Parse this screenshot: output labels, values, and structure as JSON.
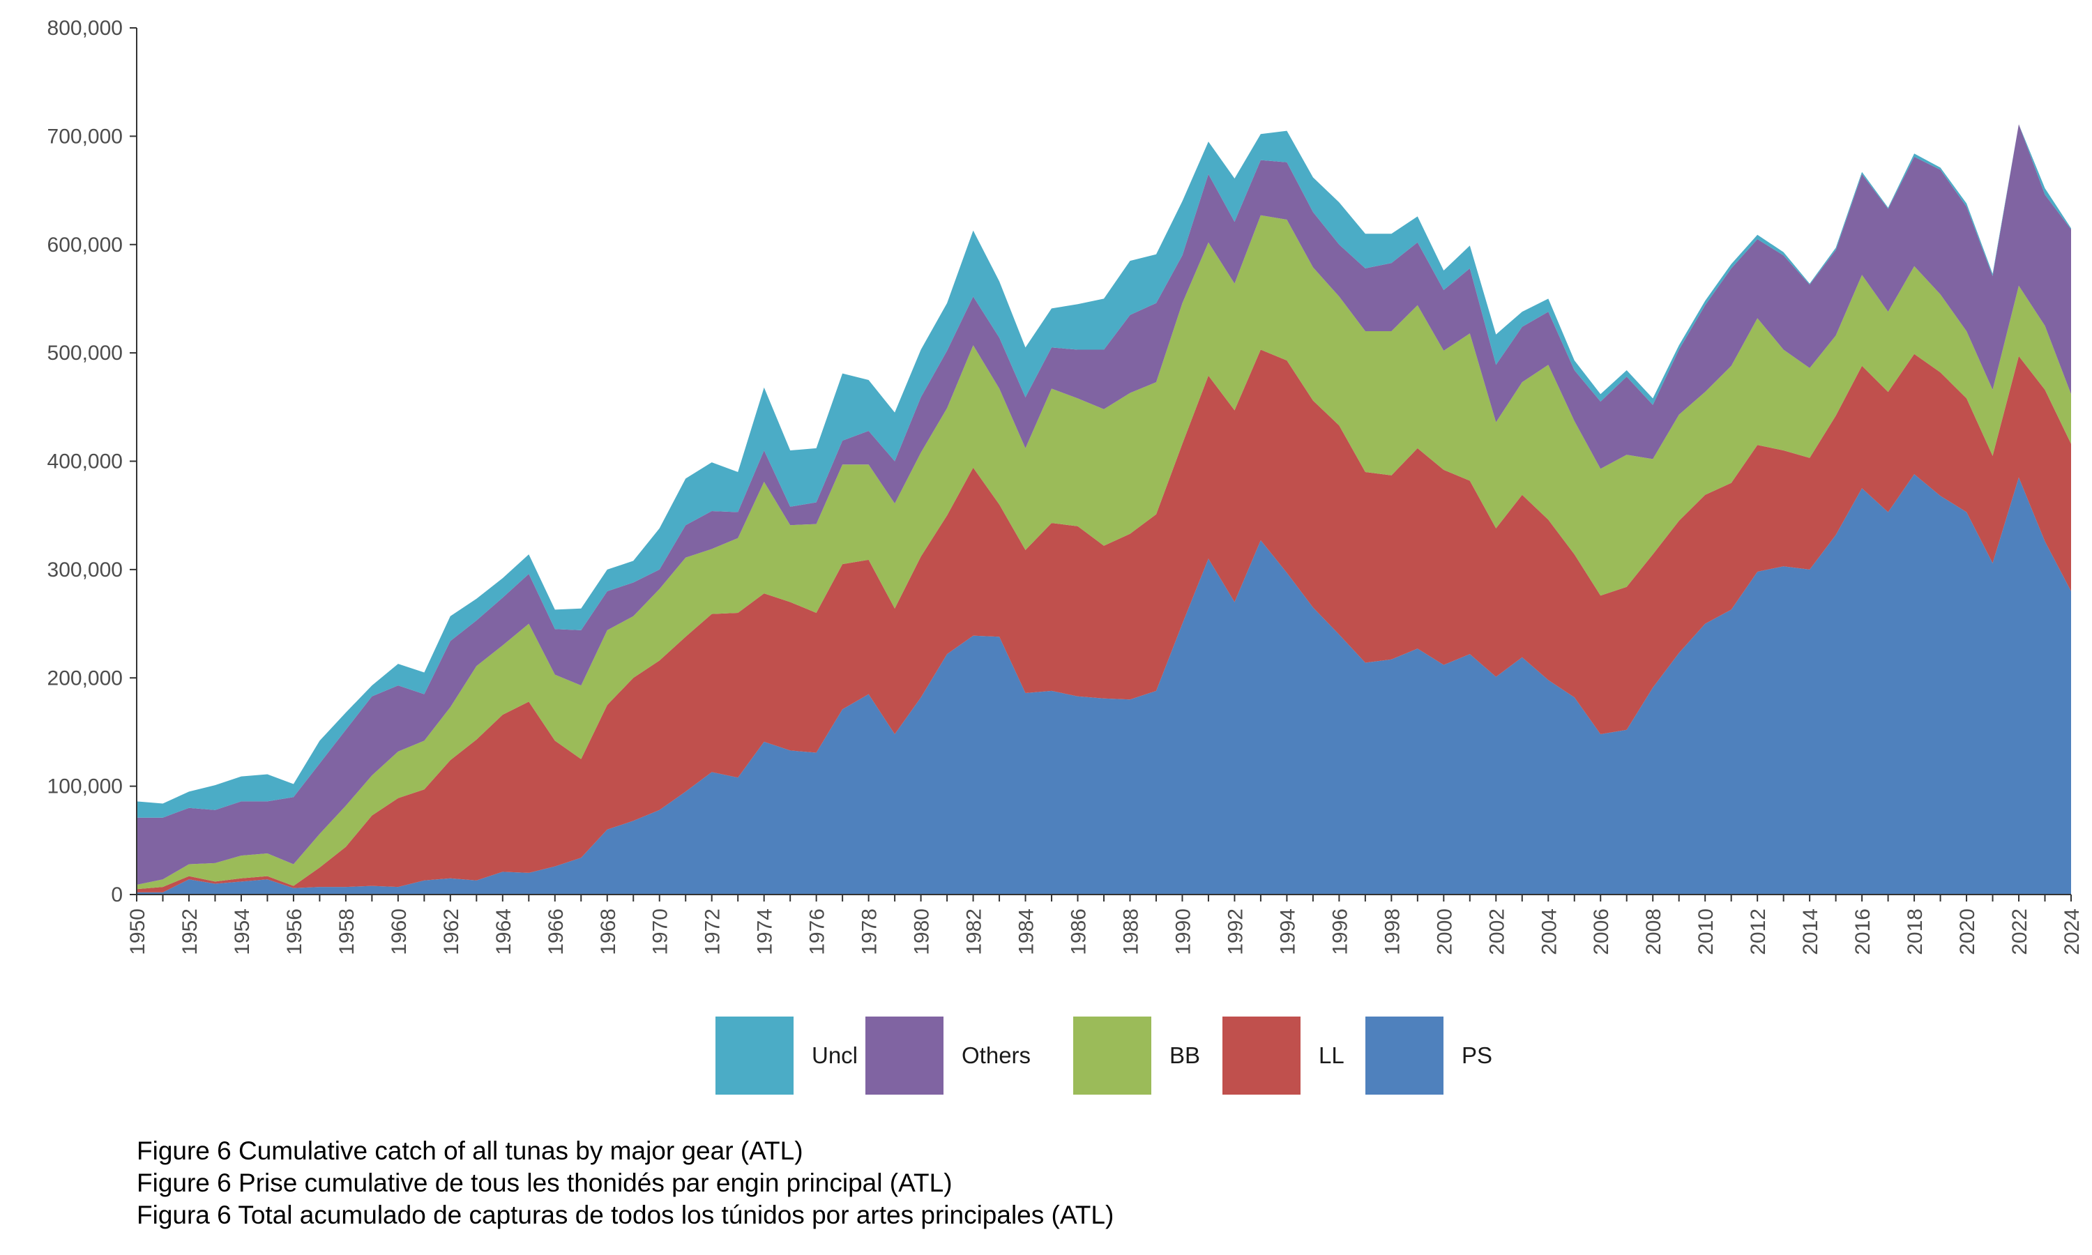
{
  "chart_data": {
    "type": "area",
    "stacked": true,
    "x": [
      1950,
      1951,
      1952,
      1953,
      1954,
      1955,
      1956,
      1957,
      1958,
      1959,
      1960,
      1961,
      1962,
      1963,
      1964,
      1965,
      1966,
      1967,
      1968,
      1969,
      1970,
      1971,
      1972,
      1973,
      1974,
      1975,
      1976,
      1977,
      1978,
      1979,
      1980,
      1981,
      1982,
      1983,
      1984,
      1985,
      1986,
      1987,
      1988,
      1989,
      1990,
      1991,
      1992,
      1993,
      1994,
      1995,
      1996,
      1997,
      1998,
      1999,
      2000,
      2001,
      2002,
      2003,
      2004,
      2005,
      2006,
      2007,
      2008,
      2009,
      2010,
      2011,
      2012,
      2013,
      2014,
      2015,
      2016,
      2017,
      2018,
      2019,
      2020,
      2021,
      2022,
      2023,
      2024
    ],
    "x_tick_labels": [
      "1950",
      "1952",
      "1954",
      "1956",
      "1958",
      "1960",
      "1962",
      "1964",
      "1966",
      "1968",
      "1970",
      "1972",
      "1974",
      "1976",
      "1978",
      "1980",
      "1982",
      "1984",
      "1986",
      "1988",
      "1990",
      "1992",
      "1994",
      "1996",
      "1998",
      "2000",
      "2002",
      "2004",
      "2006",
      "2008",
      "2010",
      "2012",
      "2014",
      "2016",
      "2018",
      "2020",
      "2022",
      "2024"
    ],
    "ylim": [
      0,
      800000
    ],
    "y_ticks": [
      0,
      100000,
      200000,
      300000,
      400000,
      500000,
      600000,
      700000,
      800000
    ],
    "y_tick_labels": [
      "0",
      "100,000",
      "200,000",
      "300,000",
      "400,000",
      "500,000",
      "600,000",
      "700,000",
      "800,000"
    ],
    "grid": false,
    "legend_position": "bottom",
    "series": [
      {
        "name": "PS",
        "color": "#4f81bd",
        "values": [
          2000,
          2000,
          14000,
          10000,
          12000,
          14000,
          6000,
          7000,
          7000,
          8000,
          7000,
          13000,
          15000,
          13000,
          21000,
          20000,
          26000,
          34000,
          60000,
          68000,
          78000,
          95000,
          113000,
          108000,
          141000,
          133000,
          131000,
          171000,
          185000,
          148000,
          182000,
          222000,
          239000,
          238000,
          186000,
          188000,
          183000,
          181000,
          180000,
          188000,
          250000,
          310000,
          270000,
          327000,
          297000,
          265000,
          240000,
          214000,
          217000,
          227000,
          212000,
          222000,
          201000,
          219000,
          198000,
          182000,
          148000,
          152000,
          191000,
          223000,
          250000,
          263000,
          298000,
          303000,
          300000,
          332000,
          375000,
          353000,
          388000,
          368000,
          353000,
          306000,
          385000,
          326000,
          280000
        ]
      },
      {
        "name": "LL",
        "color": "#c0504d",
        "values": [
          3000,
          5000,
          3000,
          2000,
          3000,
          3000,
          2000,
          18000,
          37000,
          65000,
          82000,
          84000,
          109000,
          130000,
          145000,
          158000,
          116000,
          91000,
          115000,
          132000,
          138000,
          143000,
          146000,
          152000,
          137000,
          137000,
          129000,
          134000,
          124000,
          116000,
          130000,
          128000,
          155000,
          122000,
          132000,
          155000,
          157000,
          141000,
          153000,
          163000,
          166000,
          169000,
          177000,
          176000,
          196000,
          191000,
          193000,
          176000,
          170000,
          185000,
          180000,
          160000,
          137000,
          150000,
          148000,
          132000,
          128000,
          132000,
          123000,
          122000,
          119000,
          117000,
          117000,
          107000,
          103000,
          110000,
          113000,
          111000,
          111000,
          114000,
          105000,
          99000,
          112000,
          140000,
          136000
        ]
      },
      {
        "name": "BB",
        "color": "#9bbb59",
        "values": [
          4000,
          7000,
          11000,
          17000,
          21000,
          21000,
          20000,
          31000,
          38000,
          37000,
          43000,
          45000,
          49000,
          68000,
          64000,
          72000,
          61000,
          68000,
          69000,
          57000,
          66000,
          73000,
          60000,
          69000,
          103000,
          71000,
          82000,
          92000,
          88000,
          97000,
          96000,
          99000,
          113000,
          107000,
          94000,
          124000,
          118000,
          126000,
          130000,
          122000,
          130000,
          123000,
          117000,
          124000,
          130000,
          123000,
          119000,
          130000,
          133000,
          132000,
          110000,
          136000,
          98000,
          104000,
          143000,
          123000,
          117000,
          122000,
          88000,
          98000,
          95000,
          108000,
          117000,
          93000,
          83000,
          74000,
          84000,
          74000,
          81000,
          72000,
          62000,
          61000,
          65000,
          59000,
          46000
        ]
      },
      {
        "name": "Others",
        "color": "#8064a2",
        "values": [
          62000,
          57000,
          52000,
          49000,
          50000,
          48000,
          62000,
          65000,
          70000,
          73000,
          61000,
          43000,
          61000,
          42000,
          44000,
          46000,
          42000,
          51000,
          36000,
          31000,
          18000,
          30000,
          35000,
          24000,
          29000,
          17000,
          20000,
          22000,
          31000,
          39000,
          51000,
          53000,
          45000,
          47000,
          47000,
          38000,
          45000,
          55000,
          72000,
          73000,
          44000,
          63000,
          57000,
          51000,
          53000,
          51000,
          48000,
          58000,
          63000,
          58000,
          56000,
          60000,
          53000,
          51000,
          49000,
          47000,
          62000,
          72000,
          50000,
          60000,
          80000,
          90000,
          73000,
          87000,
          77000,
          79000,
          93000,
          95000,
          101000,
          115000,
          115000,
          105000,
          149000,
          121000,
          152000
        ]
      },
      {
        "name": "Uncl",
        "color": "#4bacc6",
        "values": [
          15000,
          13000,
          15000,
          23000,
          23000,
          25000,
          12000,
          21000,
          16000,
          10000,
          20000,
          20000,
          23000,
          20000,
          18000,
          18000,
          18000,
          20000,
          20000,
          20000,
          38000,
          43000,
          45000,
          37000,
          58000,
          52000,
          50000,
          62000,
          47000,
          45000,
          44000,
          44000,
          61000,
          52000,
          46000,
          36000,
          42000,
          47000,
          50000,
          45000,
          50000,
          30000,
          40000,
          24000,
          29000,
          32000,
          39000,
          32000,
          27000,
          24000,
          18000,
          21000,
          28000,
          14000,
          12000,
          9000,
          7000,
          6000,
          6000,
          4000,
          4000,
          4000,
          4000,
          3000,
          1000,
          2000,
          2000,
          1000,
          3000,
          2000,
          3000,
          2000,
          0,
          6000,
          1000
        ]
      }
    ],
    "legend_order": [
      "Uncl",
      "Others",
      "BB",
      "LL",
      "PS"
    ]
  },
  "captions": [
    "Figure 6 Cumulative catch of all tunas by major gear (ATL)",
    "Figure 6 Prise cumulative de tous les thonidés par engin principal (ATL)",
    "Figura 6 Total acumulado de capturas de todos los túnidos por artes principales (ATL)"
  ]
}
